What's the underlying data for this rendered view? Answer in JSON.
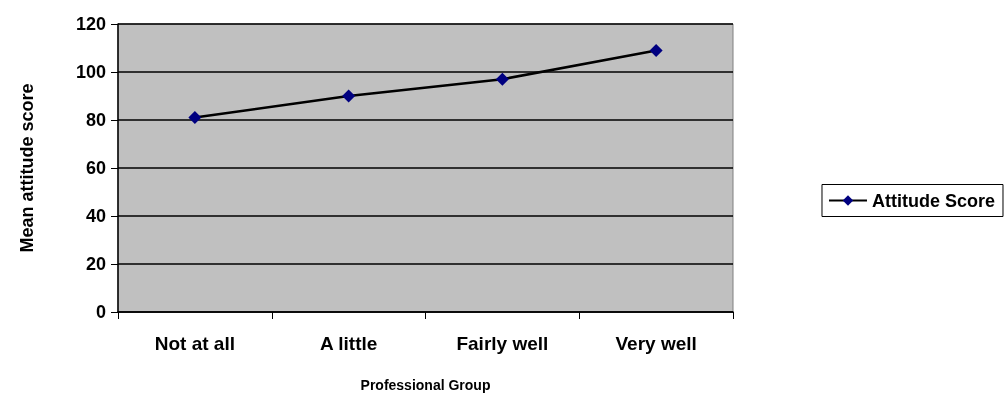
{
  "chart_data": {
    "type": "line",
    "xlabel": "Professional Group",
    "ylabel": "Mean attitude score",
    "categories": [
      "Not at all",
      "A little",
      "Fairly well",
      "Very well"
    ],
    "series": [
      {
        "name": "Attitude Score",
        "color": "#000080",
        "values": [
          81,
          90,
          97,
          109
        ]
      }
    ],
    "ylim": [
      0,
      120
    ],
    "yticks": [
      0,
      20,
      40,
      60,
      80,
      100,
      120
    ],
    "grid": "y",
    "legend": "right",
    "marker": "diamond",
    "line_style": "solid"
  }
}
